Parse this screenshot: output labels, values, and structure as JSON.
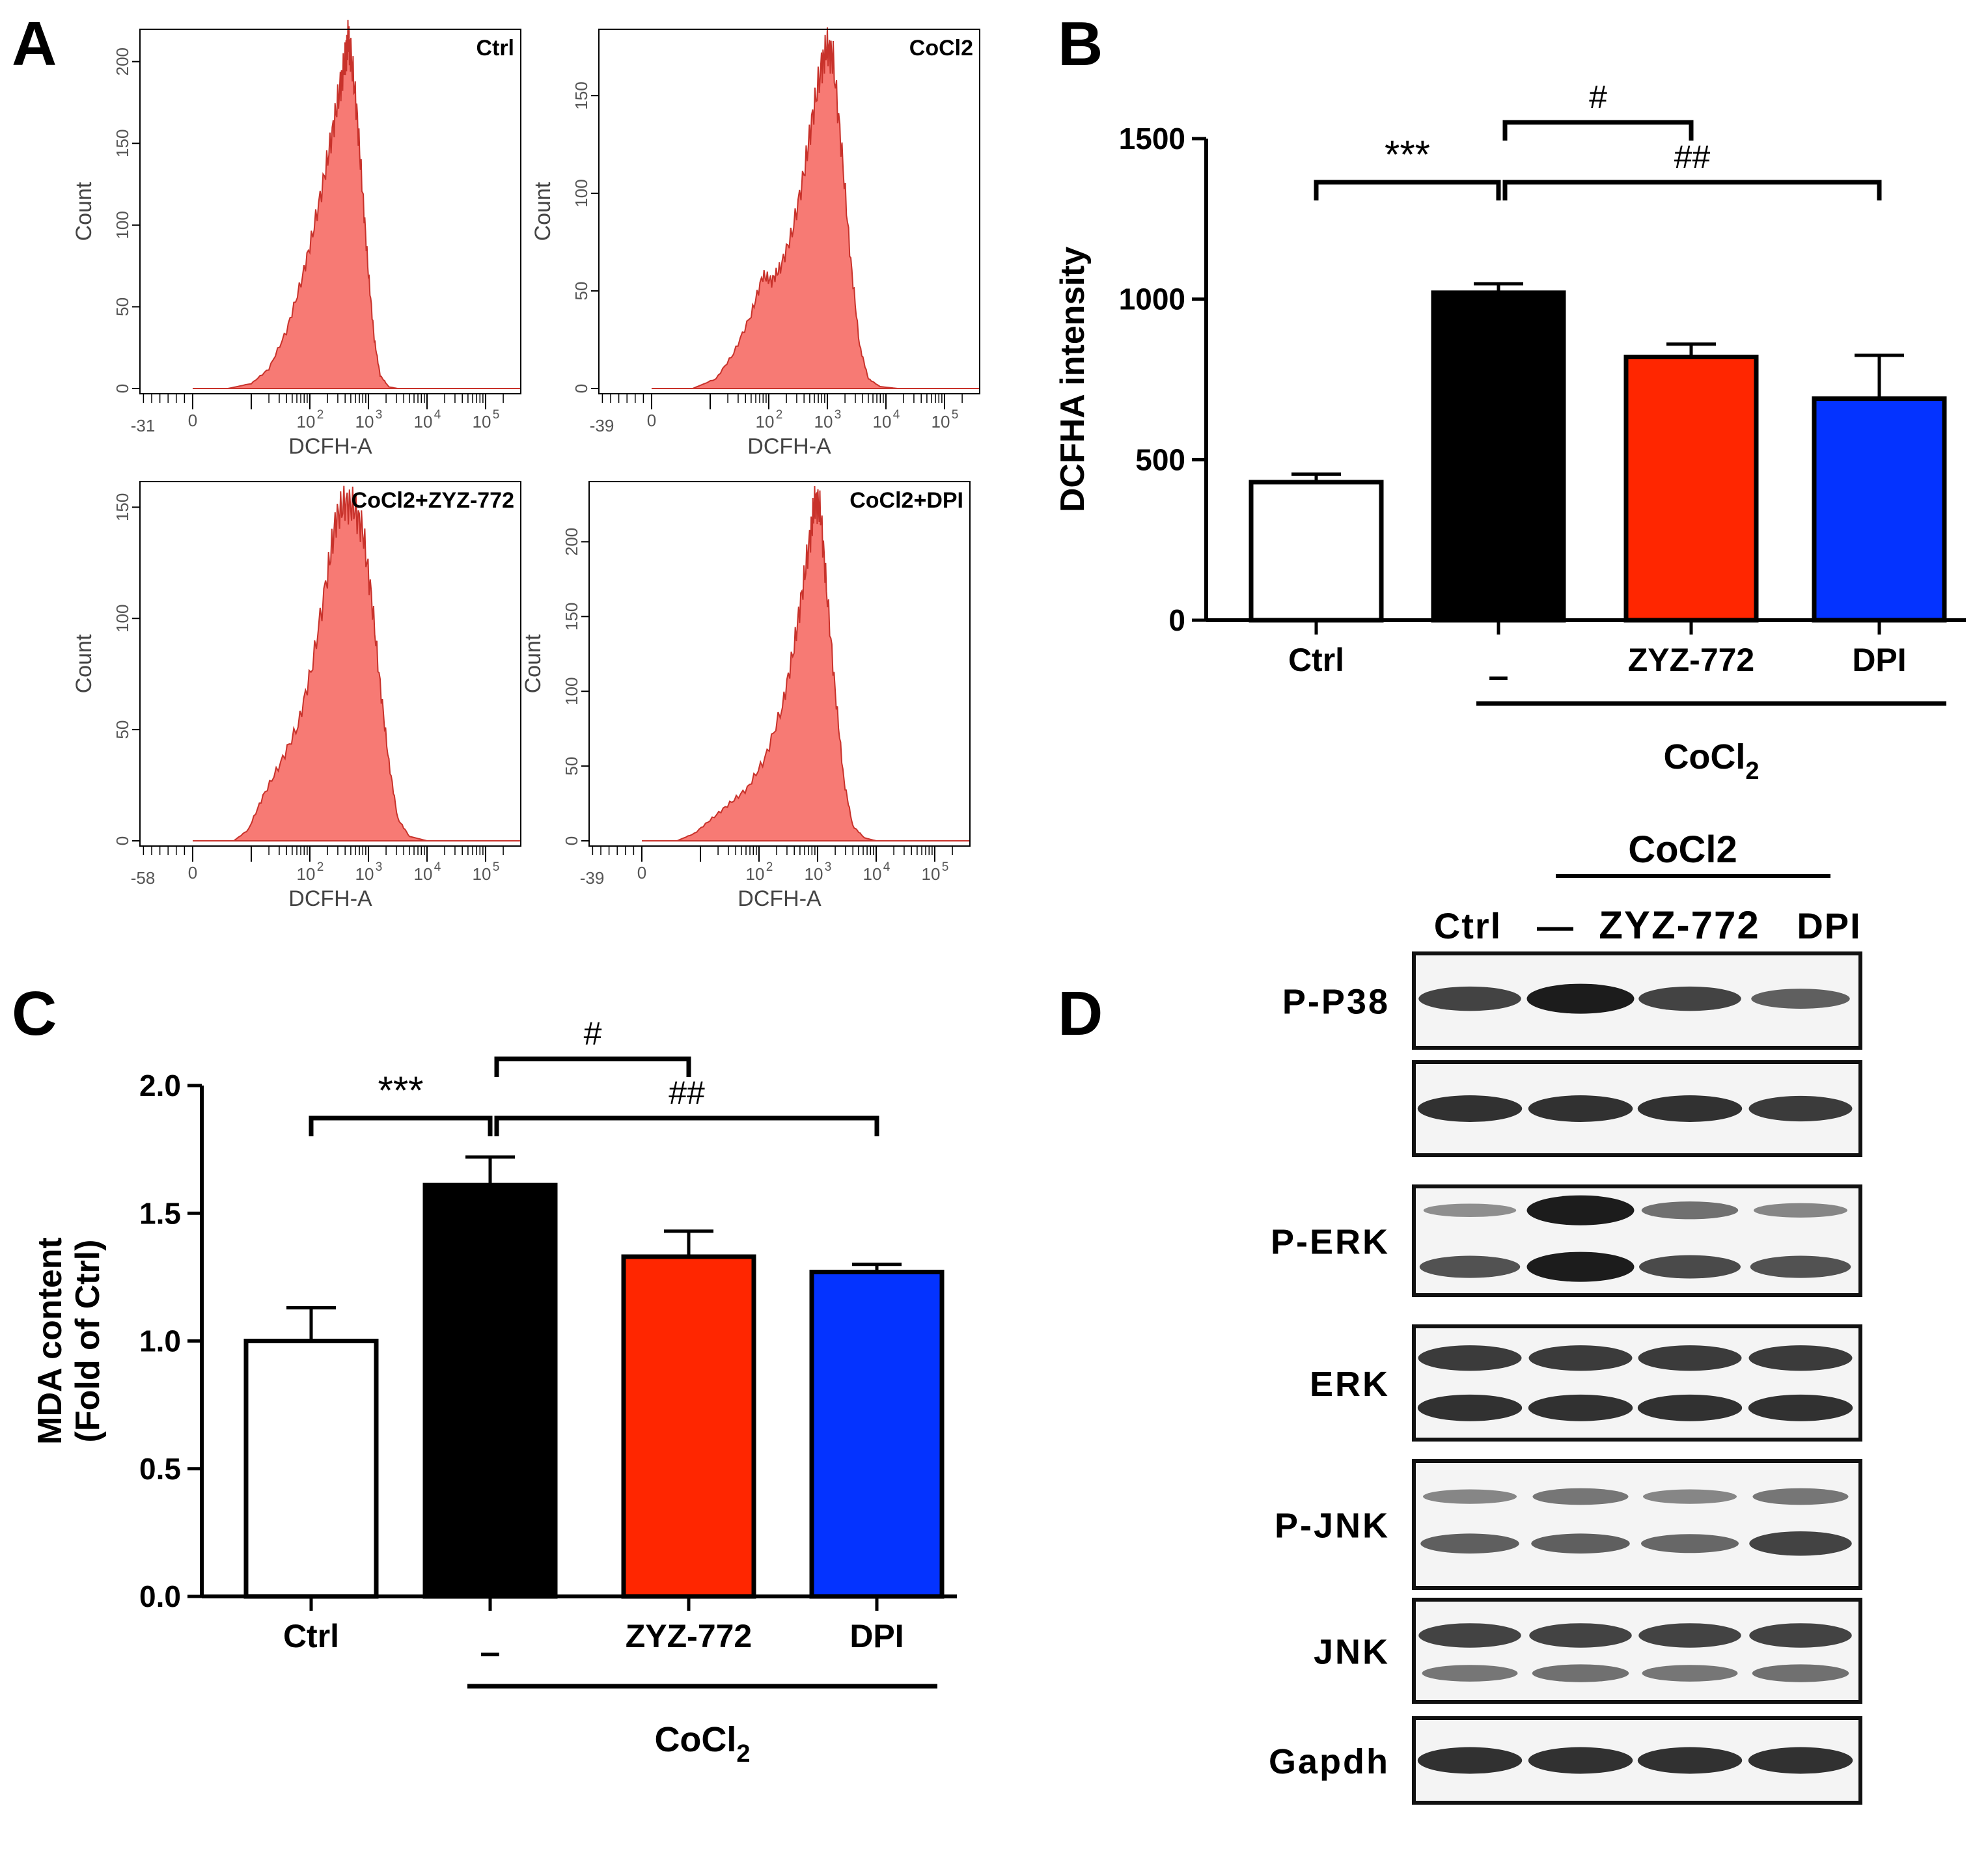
{
  "colors": {
    "histogram_fill": "#f77a74",
    "histogram_stroke": "#c8322b",
    "ctrl_bar": "#ffffff",
    "cocl2_bar": "#000000",
    "zyz_bar": "#ff2600",
    "dpi_bar": "#0433ff",
    "blot_band": "#1c1c1c",
    "blot_bg": "#f4f4f4"
  },
  "panel_labels": {
    "a": "A",
    "b": "B",
    "c": "C",
    "d": "D"
  },
  "chart_data": [
    {
      "id": "A",
      "type": "area",
      "xlabel": "DCFH-A",
      "ylabel": "Count",
      "panels": [
        {
          "title": "Ctrl",
          "xtick_labels": [
            "-31",
            "0",
            "10",
            "2",
            "10",
            "3",
            "10",
            "4",
            "10",
            "5"
          ],
          "ytick_labels": [
            "0",
            "50",
            "100",
            "150",
            "200"
          ],
          "ymax": 215,
          "peak_decade": 2.65,
          "profile": [
            [
              0.0,
              0
            ],
            [
              0.6,
              0
            ],
            [
              1.0,
              3
            ],
            [
              1.3,
              12
            ],
            [
              1.6,
              35
            ],
            [
              1.85,
              65
            ],
            [
              2.05,
              95
            ],
            [
              2.25,
              130
            ],
            [
              2.4,
              160
            ],
            [
              2.52,
              185
            ],
            [
              2.6,
              200
            ],
            [
              2.65,
              213
            ],
            [
              2.7,
              205
            ],
            [
              2.8,
              170
            ],
            [
              2.9,
              120
            ],
            [
              3.0,
              70
            ],
            [
              3.1,
              30
            ],
            [
              3.2,
              8
            ],
            [
              3.35,
              1
            ],
            [
              3.5,
              0
            ],
            [
              5.6,
              0
            ]
          ]
        },
        {
          "title": "CoCl2",
          "xtick_labels": [
            "-39",
            "0",
            "10",
            "2",
            "10",
            "3",
            "10",
            "4",
            "10",
            "5"
          ],
          "ytick_labels": [
            "0",
            "50",
            "100",
            "150"
          ],
          "ymax": 180,
          "peak_decade": 3.0,
          "profile": [
            [
              0.0,
              0
            ],
            [
              0.7,
              0
            ],
            [
              1.1,
              5
            ],
            [
              1.4,
              18
            ],
            [
              1.7,
              38
            ],
            [
              1.9,
              58
            ],
            [
              2.05,
              55
            ],
            [
              2.2,
              62
            ],
            [
              2.4,
              80
            ],
            [
              2.6,
              110
            ],
            [
              2.75,
              140
            ],
            [
              2.9,
              165
            ],
            [
              3.0,
              175
            ],
            [
              3.1,
              168
            ],
            [
              3.25,
              120
            ],
            [
              3.4,
              65
            ],
            [
              3.55,
              22
            ],
            [
              3.7,
              5
            ],
            [
              3.9,
              1
            ],
            [
              4.2,
              0
            ],
            [
              5.6,
              0
            ]
          ]
        },
        {
          "title": "CoCl2+ZYZ-772",
          "xtick_labels": [
            "-58",
            "0",
            "10",
            "2",
            "10",
            "3",
            "10",
            "4",
            "10",
            "5"
          ],
          "ytick_labels": [
            "0",
            "50",
            "100",
            "150"
          ],
          "ymax": 158,
          "peak_decade": 2.65,
          "profile": [
            [
              0.0,
              0
            ],
            [
              0.7,
              0
            ],
            [
              0.95,
              5
            ],
            [
              1.2,
              20
            ],
            [
              1.5,
              35
            ],
            [
              1.8,
              52
            ],
            [
              2.05,
              80
            ],
            [
              2.3,
              120
            ],
            [
              2.45,
              145
            ],
            [
              2.6,
              152
            ],
            [
              2.75,
              150
            ],
            [
              2.9,
              140
            ],
            [
              3.05,
              110
            ],
            [
              3.2,
              70
            ],
            [
              3.35,
              35
            ],
            [
              3.5,
              10
            ],
            [
              3.7,
              2
            ],
            [
              4.0,
              0
            ],
            [
              5.6,
              0
            ]
          ]
        },
        {
          "title": "CoCl2+DPI",
          "xtick_labels": [
            "-39",
            "0",
            "10",
            "2",
            "10",
            "3",
            "10",
            "4",
            "10",
            "5"
          ],
          "ytick_labels": [
            "0",
            "50",
            "100",
            "150",
            "200"
          ],
          "ymax": 235,
          "peak_decade": 3.0,
          "profile": [
            [
              0.0,
              0
            ],
            [
              0.6,
              0
            ],
            [
              0.9,
              5
            ],
            [
              1.2,
              15
            ],
            [
              1.5,
              25
            ],
            [
              1.8,
              35
            ],
            [
              2.1,
              55
            ],
            [
              2.4,
              90
            ],
            [
              2.6,
              130
            ],
            [
              2.75,
              170
            ],
            [
              2.88,
              205
            ],
            [
              2.96,
              228
            ],
            [
              3.05,
              220
            ],
            [
              3.15,
              170
            ],
            [
              3.3,
              100
            ],
            [
              3.45,
              40
            ],
            [
              3.6,
              10
            ],
            [
              3.8,
              2
            ],
            [
              4.0,
              0
            ],
            [
              5.6,
              0
            ]
          ]
        }
      ]
    },
    {
      "id": "B",
      "type": "bar",
      "categories": [
        "Ctrl",
        "–",
        "ZYZ-772",
        "DPI"
      ],
      "values": [
        430,
        1020,
        820,
        690
      ],
      "errors": [
        25,
        28,
        40,
        135
      ],
      "ylabel": "DCFHA intensity",
      "ylim": [
        0,
        1500
      ],
      "yticks": [
        0,
        500,
        1000,
        1500
      ],
      "group_label_main": "CoCl",
      "group_label_sub": "2",
      "significance": [
        {
          "from": 0,
          "to": 1,
          "label": "***"
        },
        {
          "from": 1,
          "to": 2,
          "label": "#"
        },
        {
          "from": 1,
          "to": 3,
          "label": "##"
        }
      ]
    },
    {
      "id": "C",
      "type": "bar",
      "categories": [
        "Ctrl",
        "–",
        "ZYZ-772",
        "DPI"
      ],
      "values": [
        1.0,
        1.61,
        1.33,
        1.27
      ],
      "errors": [
        0.13,
        0.11,
        0.1,
        0.03
      ],
      "ylabel_line1": "MDA content",
      "ylabel_line2": "(Fold of Ctrl)",
      "ylim": [
        0,
        2.0
      ],
      "yticks": [
        "0.0",
        "0.5",
        "1.0",
        "1.5",
        "2.0"
      ],
      "group_label_main": "CoCl",
      "group_label_sub": "2",
      "significance": [
        {
          "from": 0,
          "to": 1,
          "label": "***"
        },
        {
          "from": 1,
          "to": 2,
          "label": "#"
        },
        {
          "from": 1,
          "to": 3,
          "label": "##"
        }
      ]
    },
    {
      "id": "D",
      "type": "table",
      "header_group": "CoCl2",
      "lanes": [
        "Ctrl",
        "—",
        "ZYZ-772",
        "DPI"
      ],
      "rows": [
        {
          "label": "P-P38",
          "bands": [
            {
              "pos": 0.48,
              "intensity": [
                0.75,
                1.0,
                0.75,
                0.55
              ]
            }
          ]
        },
        {
          "label": "",
          "bands": [
            {
              "pos": 0.5,
              "intensity": [
                0.85,
                0.85,
                0.85,
                0.8
              ]
            }
          ]
        },
        {
          "label": "P-ERK",
          "bands": [
            {
              "pos": 0.22,
              "intensity": [
                0.25,
                1.0,
                0.45,
                0.3
              ]
            },
            {
              "pos": 0.74,
              "intensity": [
                0.65,
                1.0,
                0.7,
                0.65
              ]
            }
          ]
        },
        {
          "label": "ERK",
          "bands": [
            {
              "pos": 0.28,
              "intensity": [
                0.8,
                0.8,
                0.8,
                0.8
              ]
            },
            {
              "pos": 0.72,
              "intensity": [
                0.85,
                0.85,
                0.85,
                0.85
              ]
            }
          ]
        },
        {
          "label": "P-JNK",
          "bands": [
            {
              "pos": 0.28,
              "intensity": [
                0.3,
                0.4,
                0.3,
                0.4
              ]
            },
            {
              "pos": 0.65,
              "intensity": [
                0.55,
                0.55,
                0.5,
                0.75
              ]
            }
          ]
        },
        {
          "label": "JNK",
          "bands": [
            {
              "pos": 0.35,
              "intensity": [
                0.75,
                0.75,
                0.75,
                0.75
              ]
            },
            {
              "pos": 0.72,
              "intensity": [
                0.4,
                0.45,
                0.4,
                0.45
              ]
            }
          ]
        },
        {
          "label": "Gapdh",
          "bands": [
            {
              "pos": 0.5,
              "intensity": [
                0.85,
                0.85,
                0.85,
                0.85
              ]
            }
          ]
        }
      ]
    }
  ]
}
